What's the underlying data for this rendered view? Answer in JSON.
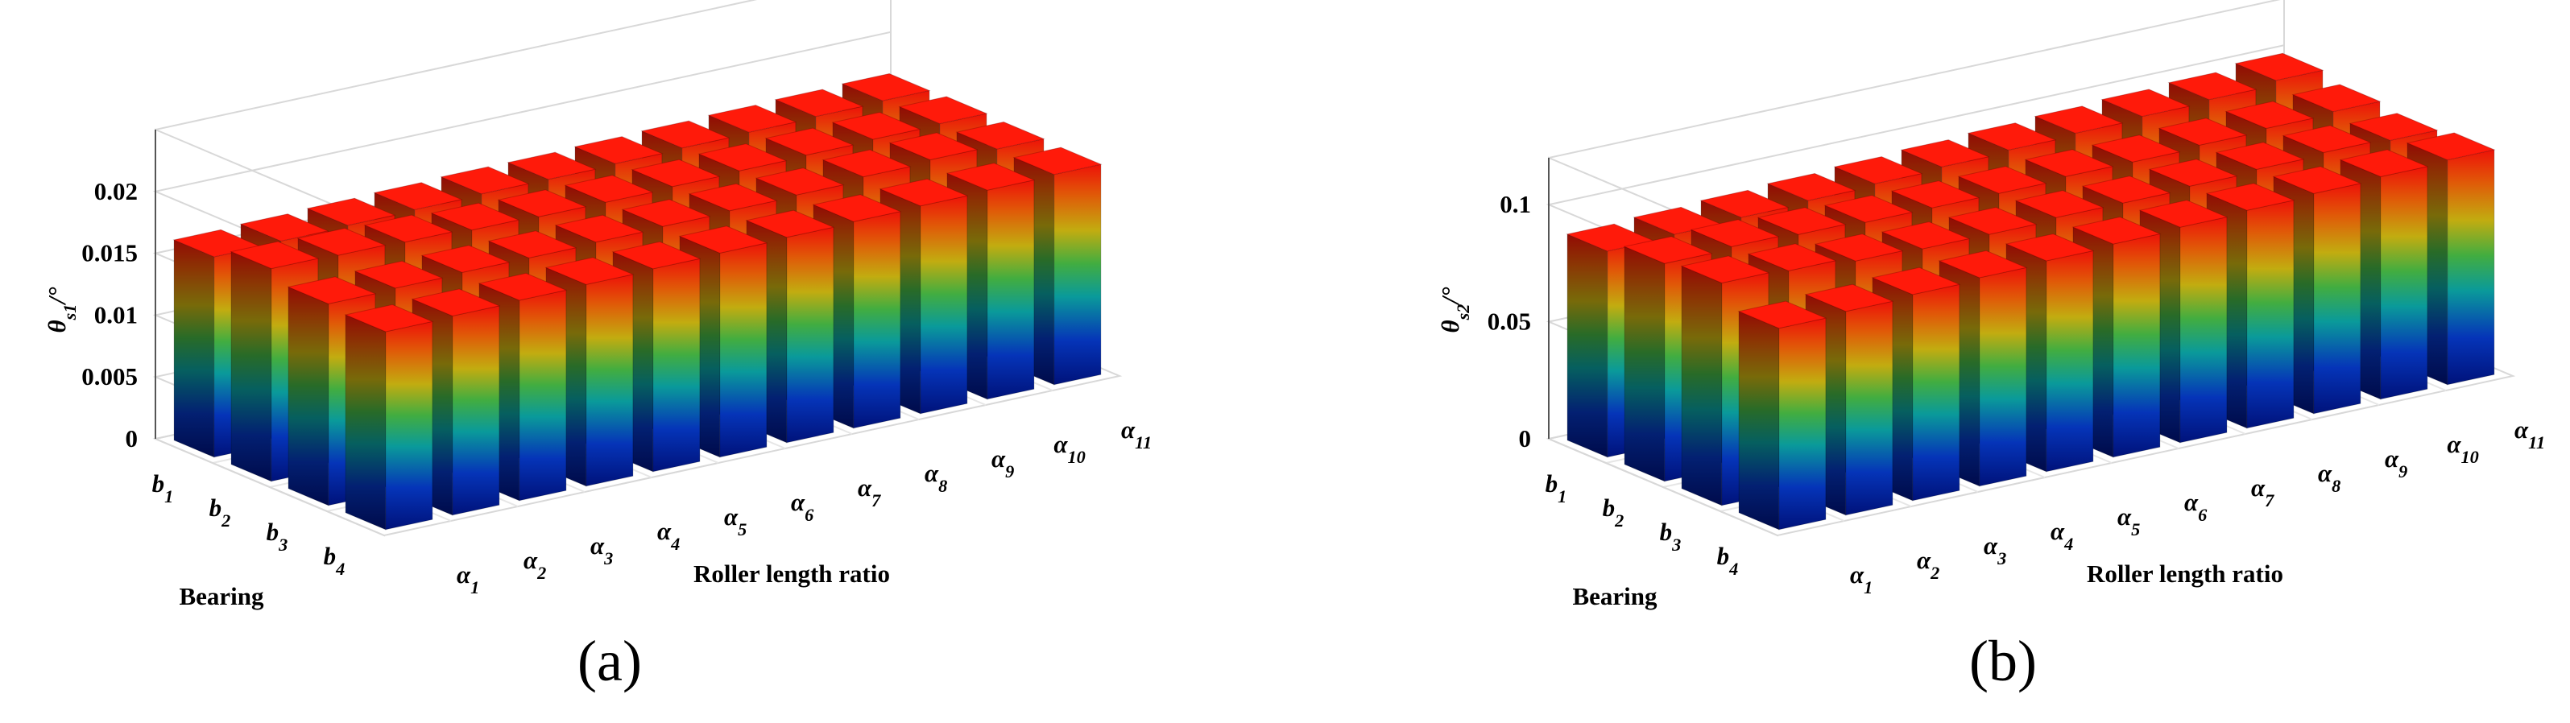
{
  "chart_data": [
    {
      "type": "bar3d",
      "panel_label": "(a)",
      "zlabel": "θs1/°",
      "xlabel": "Roller length ratio",
      "ylabel": "Bearing",
      "categories": [
        "α1",
        "α2",
        "α3",
        "α4",
        "α5",
        "α6",
        "α7",
        "α8",
        "α9",
        "α10",
        "α11"
      ],
      "series": [
        {
          "name": "b1",
          "values": [
            0.0162,
            0.0163,
            0.0164,
            0.0165,
            0.0166,
            0.0166,
            0.0167,
            0.0168,
            0.0169,
            0.017,
            0.0171
          ]
        },
        {
          "name": "b2",
          "values": [
            0.0172,
            0.0171,
            0.017,
            0.0168,
            0.0167,
            0.0167,
            0.0168,
            0.0169,
            0.017,
            0.0171,
            0.0172
          ]
        },
        {
          "name": "b3",
          "values": [
            0.0163,
            0.0164,
            0.0165,
            0.0165,
            0.0166,
            0.0167,
            0.0168,
            0.0169,
            0.0172,
            0.0174,
            0.0171
          ]
        },
        {
          "name": "b4",
          "values": [
            0.016,
            0.0161,
            0.0162,
            0.0163,
            0.0164,
            0.0165,
            0.0166,
            0.0167,
            0.0168,
            0.0169,
            0.017
          ]
        }
      ],
      "zlim": [
        0,
        0.025
      ],
      "zticks": [
        0,
        0.005,
        0.01,
        0.015,
        0.02
      ],
      "grid": true,
      "colormap": "jet"
    },
    {
      "type": "bar3d",
      "panel_label": "(b)",
      "zlabel": "θs2/°",
      "xlabel": "Roller length ratio",
      "ylabel": "Bearing",
      "categories": [
        "α1",
        "α2",
        "α3",
        "α4",
        "α5",
        "α6",
        "α7",
        "α8",
        "α9",
        "α10",
        "α11"
      ],
      "series": [
        {
          "name": "b1",
          "values": [
            0.088,
            0.089,
            0.09,
            0.091,
            0.092,
            0.093,
            0.094,
            0.095,
            0.096,
            0.097,
            0.099
          ]
        },
        {
          "name": "b2",
          "values": [
            0.093,
            0.094,
            0.093,
            0.092,
            0.092,
            0.092,
            0.093,
            0.093,
            0.094,
            0.095,
            0.096
          ]
        },
        {
          "name": "b3",
          "values": [
            0.095,
            0.094,
            0.092,
            0.091,
            0.091,
            0.092,
            0.092,
            0.093,
            0.094,
            0.095,
            0.094
          ]
        },
        {
          "name": "b4",
          "values": [
            0.086,
            0.087,
            0.088,
            0.089,
            0.09,
            0.091,
            0.092,
            0.093,
            0.094,
            0.095,
            0.096
          ]
        }
      ],
      "zlim": [
        0,
        0.12
      ],
      "zticks": [
        0,
        0.05,
        0.1
      ],
      "grid": true,
      "colormap": "jet"
    }
  ]
}
